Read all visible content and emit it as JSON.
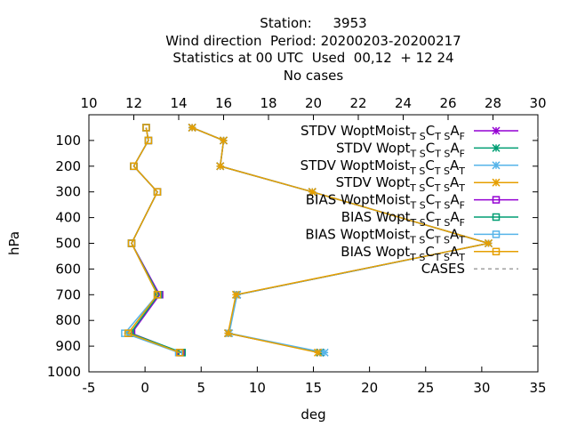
{
  "title_lines": [
    "Station:     3953",
    "Wind direction  Period: 20200203-20200217",
    "Statistics at 00 UTC  Used  00,12  + 12 24",
    "No cases"
  ],
  "chart_data": {
    "type": "line",
    "xlabel": "deg",
    "ylabel": "hPa",
    "xlim": [
      -5,
      35
    ],
    "x2lim": [
      10,
      30
    ],
    "ylim": [
      1000,
      0
    ],
    "x_ticks": [
      "-5",
      "0",
      "5",
      "10",
      "15",
      "20",
      "25",
      "30",
      "35"
    ],
    "x2_ticks": [
      "10",
      "12",
      "14",
      "16",
      "18",
      "20",
      "22",
      "24",
      "26",
      "28",
      "30"
    ],
    "y_ticks": [
      "100",
      "200",
      "300",
      "400",
      "500",
      "600",
      "700",
      "800",
      "900",
      "1000"
    ],
    "legend_position": "top-right",
    "series": [
      {
        "name": "STDV WoptMoist",
        "sub1": "T S",
        "mid": "C",
        "sub2": "T S",
        "tail": "A",
        "sub3": "F",
        "color": "#9400d3",
        "marker": "star",
        "points": [
          [
            14.6,
            50
          ],
          [
            16.0,
            100
          ],
          [
            15.85,
            200
          ],
          [
            19.95,
            300
          ],
          [
            27.8,
            500
          ],
          [
            16.6,
            700
          ],
          [
            16.2,
            850
          ],
          [
            20.3,
            925
          ]
        ]
      },
      {
        "name": "STDV Wopt",
        "sub1": "T S",
        "mid": "C",
        "sub2": "T S",
        "tail": "A",
        "sub3": "F",
        "color": "#009e73",
        "marker": "star",
        "points": [
          [
            14.6,
            50
          ],
          [
            16.0,
            100
          ],
          [
            15.85,
            200
          ],
          [
            19.95,
            300
          ],
          [
            27.8,
            500
          ],
          [
            16.6,
            700
          ],
          [
            16.2,
            850
          ],
          [
            20.3,
            925
          ]
        ]
      },
      {
        "name": "STDV WoptMoist",
        "sub1": "T S",
        "mid": "C",
        "sub2": "T S",
        "tail": "A",
        "sub3": "T",
        "color": "#56b4e9",
        "marker": "star",
        "points": [
          [
            14.6,
            50
          ],
          [
            16.0,
            100
          ],
          [
            15.85,
            200
          ],
          [
            19.95,
            300
          ],
          [
            27.8,
            500
          ],
          [
            16.6,
            700
          ],
          [
            16.25,
            850
          ],
          [
            20.5,
            925
          ]
        ]
      },
      {
        "name": "STDV Wopt",
        "sub1": "T S",
        "mid": "C",
        "sub2": "T S",
        "tail": "A",
        "sub3": "T",
        "color": "#e69f00",
        "marker": "star",
        "points": [
          [
            14.6,
            50
          ],
          [
            16.0,
            100
          ],
          [
            15.85,
            200
          ],
          [
            19.95,
            300
          ],
          [
            27.8,
            500
          ],
          [
            16.55,
            700
          ],
          [
            16.2,
            850
          ],
          [
            20.2,
            925
          ]
        ]
      },
      {
        "name": "BIAS WoptMoist",
        "sub1": "T S",
        "mid": "C",
        "sub2": "T S",
        "tail": "A",
        "sub3": "F",
        "color": "#9400d3",
        "marker": "square",
        "points": [
          [
            12.55,
            50
          ],
          [
            12.65,
            100
          ],
          [
            12.0,
            200
          ],
          [
            13.05,
            300
          ],
          [
            11.9,
            500
          ],
          [
            13.15,
            700
          ],
          [
            11.9,
            850
          ],
          [
            14.1,
            925
          ]
        ]
      },
      {
        "name": "BIAS Wopt",
        "sub1": "T S",
        "mid": "C",
        "sub2": "T S",
        "tail": "A",
        "sub3": "F",
        "color": "#009e73",
        "marker": "square",
        "points": [
          [
            12.55,
            50
          ],
          [
            12.65,
            100
          ],
          [
            12.0,
            200
          ],
          [
            13.05,
            300
          ],
          [
            11.9,
            500
          ],
          [
            13.1,
            700
          ],
          [
            11.85,
            850
          ],
          [
            14.15,
            925
          ]
        ]
      },
      {
        "name": "BIAS WoptMoist",
        "sub1": "T S",
        "mid": "C",
        "sub2": "T S",
        "tail": "A",
        "sub3": "T",
        "color": "#56b4e9",
        "marker": "square",
        "points": [
          [
            12.55,
            50
          ],
          [
            12.65,
            100
          ],
          [
            12.0,
            200
          ],
          [
            13.05,
            300
          ],
          [
            11.9,
            500
          ],
          [
            13.05,
            700
          ],
          [
            11.6,
            850
          ],
          [
            14.0,
            925
          ]
        ]
      },
      {
        "name": "BIAS Wopt",
        "sub1": "T S",
        "mid": "C",
        "sub2": "T S",
        "tail": "A",
        "sub3": "T",
        "color": "#e69f00",
        "marker": "square",
        "points": [
          [
            12.55,
            50
          ],
          [
            12.65,
            100
          ],
          [
            12.0,
            200
          ],
          [
            13.05,
            300
          ],
          [
            11.9,
            500
          ],
          [
            13.05,
            700
          ],
          [
            11.75,
            850
          ],
          [
            14.05,
            925
          ]
        ]
      },
      {
        "name": "CASES",
        "color": "#a0a0a0",
        "marker": "none",
        "dashed": true,
        "points": [
          [
            30.0,
            90
          ],
          [
            30.6,
            0
          ]
        ]
      }
    ]
  }
}
